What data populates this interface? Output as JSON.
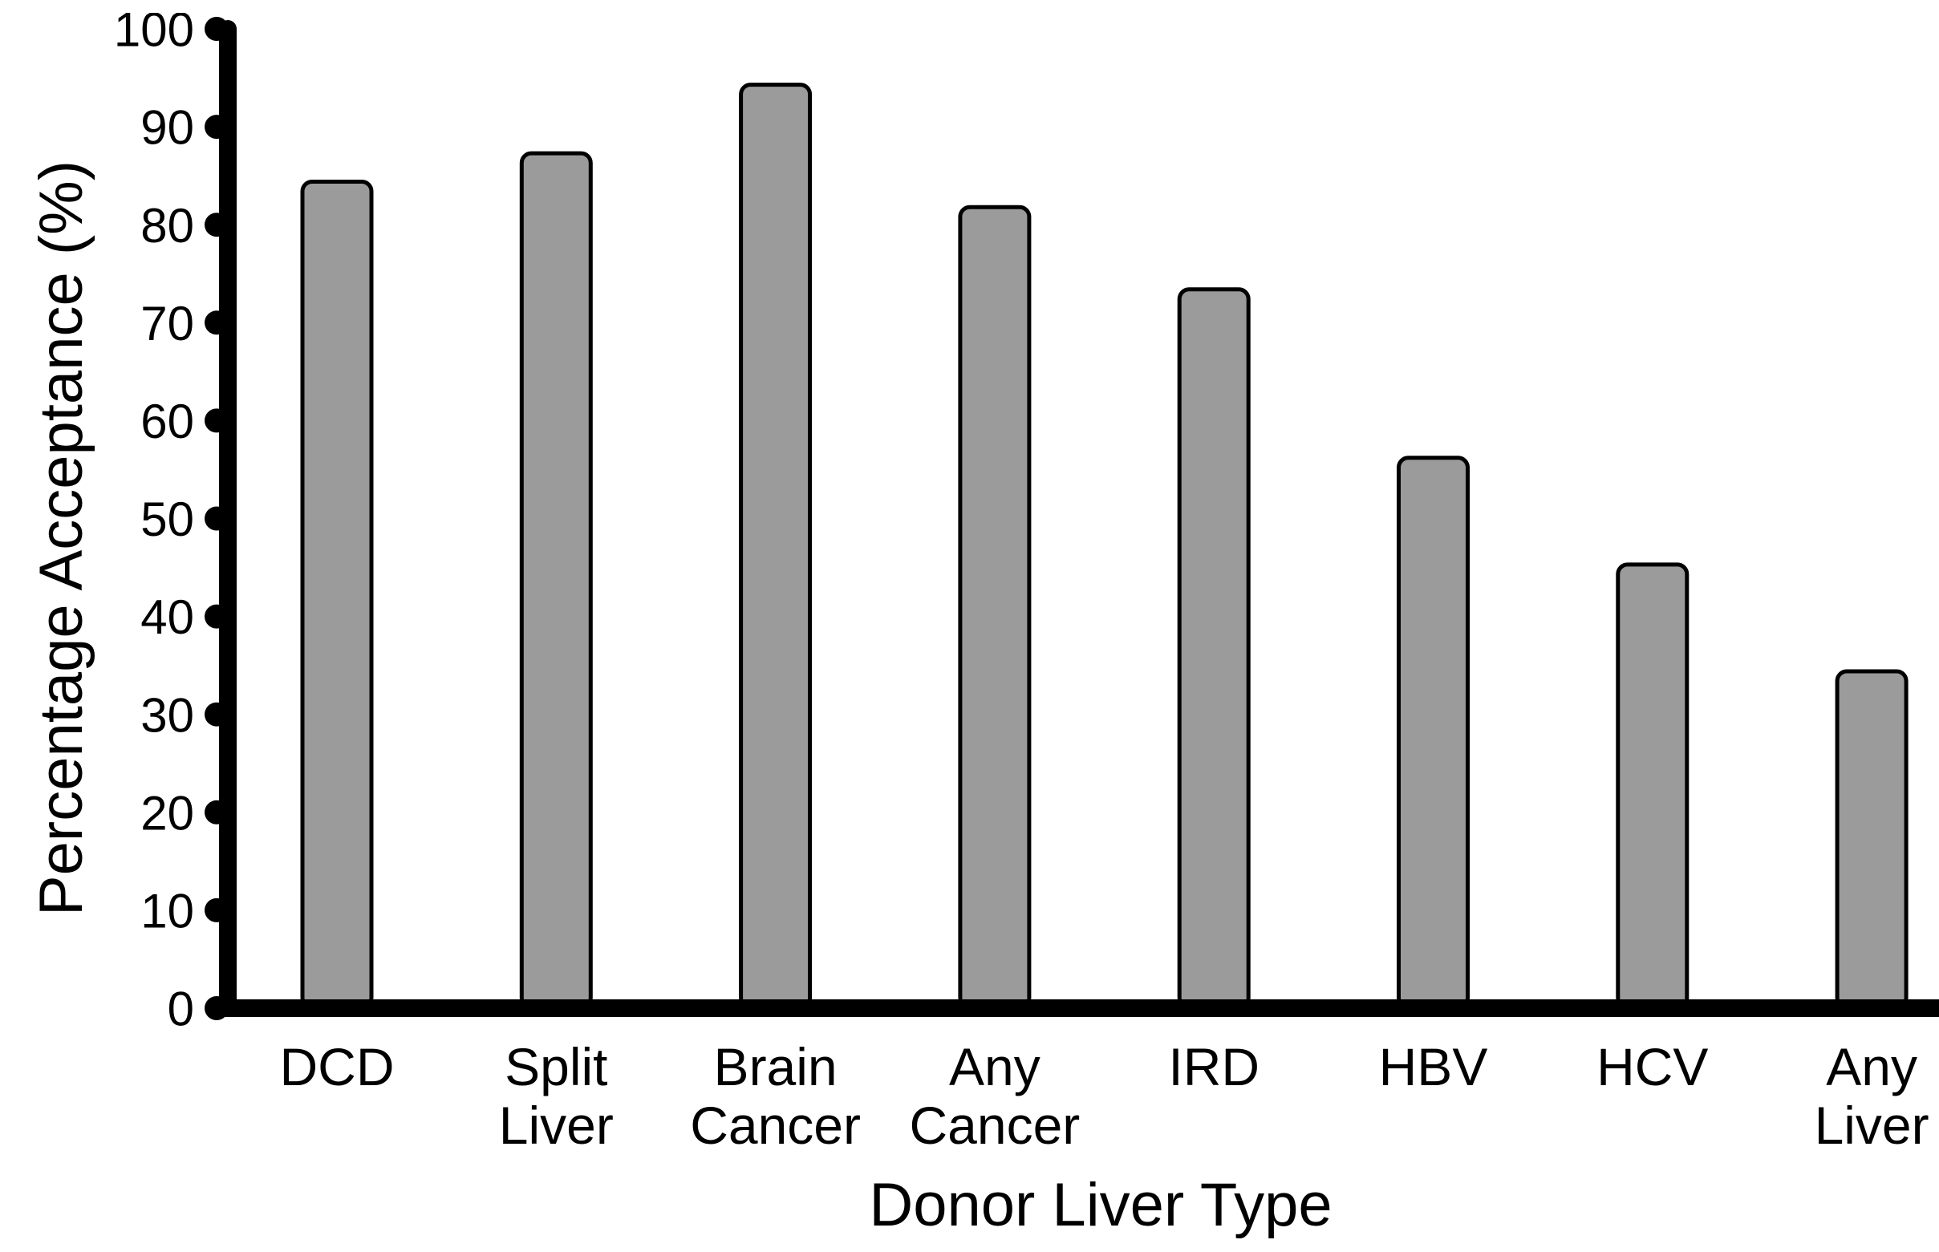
{
  "figure": {
    "background_color": "#ffffff"
  },
  "chart_data": {
    "type": "bar",
    "title": "",
    "xlabel": "Donor Liver Type",
    "ylabel": "Percentage Acceptance (%)",
    "categories": [
      "DCD",
      "Split Liver",
      "Brain Cancer",
      "Any Cancer",
      "IRD",
      "HBV",
      "HCV",
      "Any Liver"
    ],
    "values": [
      84.4,
      87.3,
      94.3,
      81.8,
      73.4,
      56.2,
      45.3,
      34.4
    ],
    "ylim": [
      0,
      100
    ],
    "yticks": [
      0,
      10,
      20,
      30,
      40,
      50,
      60,
      70,
      80,
      90,
      100
    ],
    "grid": false,
    "legend": false,
    "legend_position": "none",
    "bar_fill_color": "#9b9b9b",
    "bar_border_color": "#000000",
    "axis_color": "#000000",
    "text_color": "#000000"
  }
}
